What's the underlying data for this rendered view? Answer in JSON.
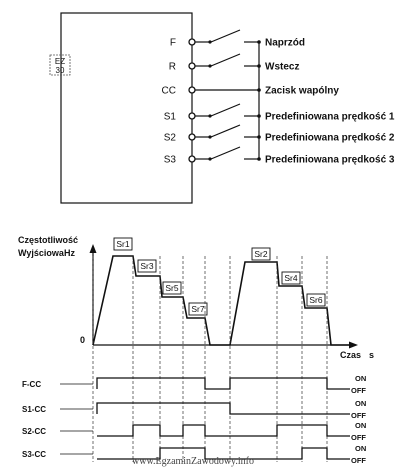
{
  "inverter": {
    "logo_lines": [
      "EZ",
      "30"
    ],
    "terminals": [
      {
        "id": "F",
        "label": "F",
        "description": "Naprzód",
        "switch": true
      },
      {
        "id": "R",
        "label": "R",
        "description": "Wstecz",
        "switch": true
      },
      {
        "id": "CC",
        "label": "CC",
        "description": "Zacisk wapólny",
        "switch": false
      },
      {
        "id": "S1",
        "label": "S1",
        "description": "Predefiniowana prędkość 1",
        "switch": true
      },
      {
        "id": "S2",
        "label": "S2",
        "description": "Predefiniowana prędkość 2",
        "switch": true
      },
      {
        "id": "S3",
        "label": "S3",
        "description": "Predefiniowana prędkość 3",
        "switch": true
      }
    ]
  },
  "chart": {
    "ylabel_line1": "Częstotliwość",
    "ylabel_line2": "Wyjściowa",
    "ylabel_unit": "Hz",
    "origin_label": "0",
    "xlabel": "Czas",
    "xlabel_unit": "s",
    "speed_tags": [
      "Sr1",
      "Sr3",
      "Sr5",
      "Sr7",
      "Sr2",
      "Sr4",
      "Sr6"
    ],
    "signals": [
      {
        "name": "F-CC",
        "on_label": "ON",
        "off_label": "OFF"
      },
      {
        "name": "S1-CC",
        "on_label": "ON",
        "off_label": "OFF"
      },
      {
        "name": "S2-CC",
        "on_label": "ON",
        "off_label": "OFF"
      },
      {
        "name": "S3-CC",
        "on_label": "ON",
        "off_label": "OFF"
      }
    ]
  },
  "watermark": "www.EgzaminZawodowy.info"
}
